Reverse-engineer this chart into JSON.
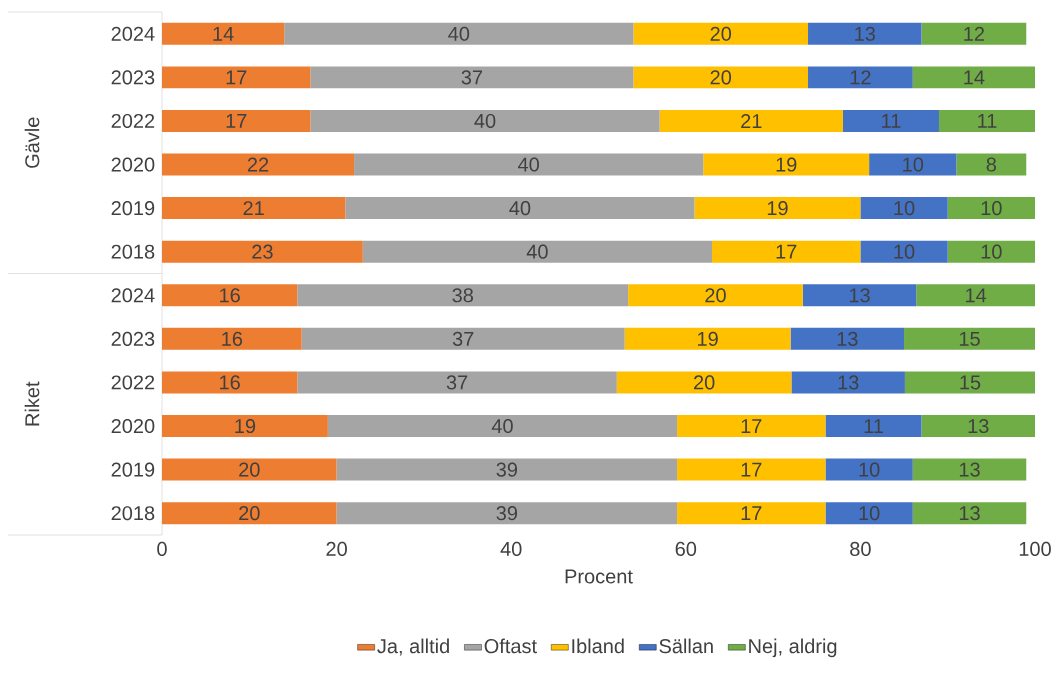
{
  "chart_data": {
    "type": "bar",
    "orientation": "horizontal",
    "stacked": true,
    "grid": false,
    "legend": "bottom",
    "xlabel": "Procent",
    "xlim": [
      0,
      100
    ],
    "xticks": [
      0,
      20,
      40,
      60,
      80,
      100
    ],
    "annotations": [
      "Gävle",
      "Riket"
    ],
    "categories": [
      "2024",
      "2023",
      "2022",
      "2020",
      "2019",
      "2018",
      "2024",
      "2023",
      "2022",
      "2020",
      "2019",
      "2018"
    ],
    "series": [
      {
        "name": "Ja, alltid",
        "color": "#ed7d31",
        "values": [
          14,
          17,
          17,
          22,
          21,
          23,
          15.5,
          16,
          15.5,
          19,
          20,
          20
        ],
        "value_labels": [
          "14",
          "17",
          "17",
          "22",
          "21",
          "23",
          "16",
          "16",
          "16",
          "19",
          "20",
          "20"
        ]
      },
      {
        "name": "Oftast",
        "color": "#a5a5a5",
        "values": [
          40,
          37,
          40,
          40,
          40,
          40,
          37.9,
          37,
          36.6,
          40,
          39,
          39
        ],
        "value_labels": [
          "40",
          "37",
          "40",
          "40",
          "40",
          "40",
          "38",
          "37",
          "37",
          "40",
          "39",
          "39"
        ]
      },
      {
        "name": "Ibland",
        "color": "#ffc000",
        "values": [
          20,
          20,
          21,
          19,
          19,
          17,
          20,
          19,
          20,
          17,
          17,
          17
        ],
        "value_labels": [
          "20",
          "20",
          "21",
          "19",
          "19",
          "17",
          "20",
          "19",
          "20",
          "17",
          "17",
          "17"
        ]
      },
      {
        "name": "Sällan",
        "color": "#4472c4",
        "values": [
          13,
          12,
          11,
          10,
          10,
          10,
          13,
          13,
          13,
          11,
          10,
          10
        ],
        "value_labels": [
          "13",
          "12",
          "11",
          "10",
          "10",
          "10",
          "13",
          "13",
          "13",
          "11",
          "10",
          "10"
        ]
      },
      {
        "name": "Nej, aldrig",
        "color": "#70ad47",
        "values": [
          12,
          14,
          11,
          8,
          10,
          10,
          13.6,
          15,
          14.9,
          13,
          13,
          13
        ],
        "value_labels": [
          "12",
          "14",
          "11",
          "8",
          "10",
          "10",
          "14",
          "15",
          "15",
          "13",
          "13",
          "13"
        ]
      }
    ]
  }
}
